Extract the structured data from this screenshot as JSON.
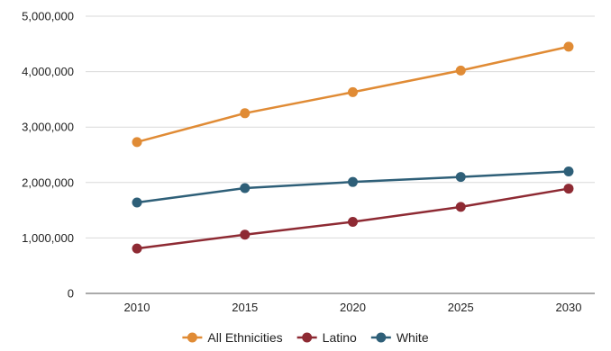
{
  "chart_data": {
    "type": "line",
    "title": "",
    "xlabel": "",
    "ylabel": "",
    "x": [
      "2010",
      "2015",
      "2020",
      "2025",
      "2030"
    ],
    "ylim": [
      0,
      5000000
    ],
    "y_ticks": [
      0,
      1000000,
      2000000,
      3000000,
      4000000,
      5000000
    ],
    "y_tick_labels": [
      "0",
      "1,000,000",
      "2,000,000",
      "3,000,000",
      "4,000,000",
      "5,000,000"
    ],
    "grid": "horizontal",
    "legend_position": "bottom",
    "series": [
      {
        "name": "All Ethnicities",
        "color": "#E08B35",
        "values": [
          2730000,
          3250000,
          3630000,
          4020000,
          4450000
        ]
      },
      {
        "name": "Latino",
        "color": "#8E2A33",
        "values": [
          810000,
          1060000,
          1290000,
          1560000,
          1890000
        ]
      },
      {
        "name": "White",
        "color": "#2E5F78",
        "values": [
          1640000,
          1900000,
          2010000,
          2100000,
          2200000
        ]
      }
    ]
  }
}
